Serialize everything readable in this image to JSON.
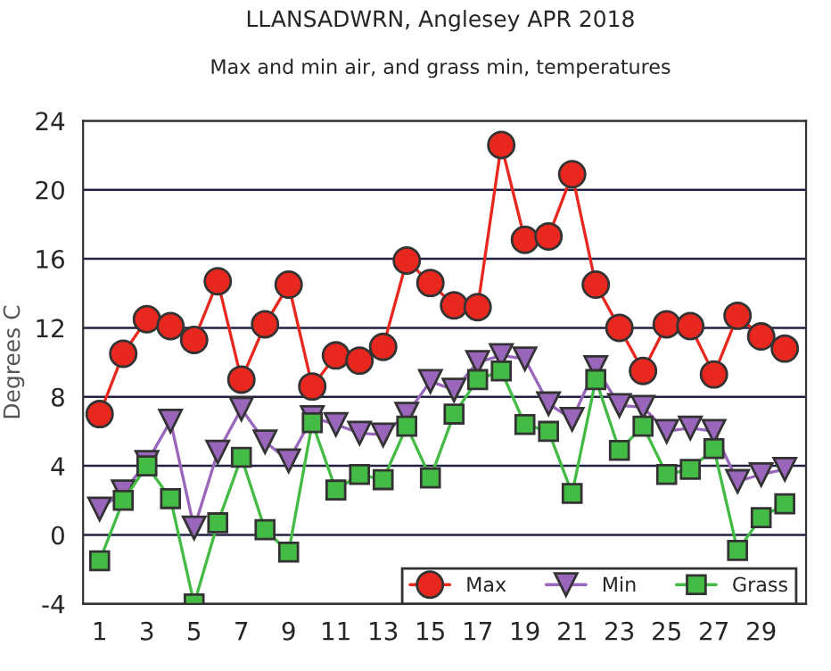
{
  "chart_data": {
    "type": "line",
    "title": "LLANSADWRN, Anglesey APR 2018",
    "subtitle": "Max and min air, and grass min, temperatures",
    "ylabel": "Degrees C",
    "x": [
      1,
      2,
      3,
      4,
      5,
      6,
      7,
      8,
      9,
      10,
      11,
      12,
      13,
      14,
      15,
      16,
      17,
      18,
      19,
      20,
      21,
      22,
      23,
      24,
      25,
      26,
      27,
      28,
      29,
      30
    ],
    "series": [
      {
        "name": "Max",
        "color": "#e8281e",
        "marker": "circle",
        "values": [
          7.0,
          10.5,
          12.5,
          12.1,
          11.3,
          14.7,
          9.0,
          12.2,
          14.5,
          8.6,
          10.4,
          10.1,
          10.9,
          15.9,
          14.6,
          13.3,
          13.2,
          22.6,
          17.1,
          17.3,
          20.9,
          14.5,
          12.0,
          9.5,
          12.2,
          12.1,
          9.3,
          12.7,
          11.5,
          10.8
        ]
      },
      {
        "name": "Min",
        "color": "#9966bb",
        "marker": "triangle",
        "values": [
          1.5,
          2.5,
          4.2,
          6.6,
          0.4,
          4.8,
          7.3,
          5.4,
          4.3,
          6.8,
          6.4,
          5.9,
          5.8,
          7.0,
          8.9,
          8.4,
          10.0,
          10.4,
          10.2,
          7.6,
          6.7,
          9.7,
          7.5,
          7.4,
          6.0,
          6.2,
          6.0,
          3.1,
          3.5,
          3.8
        ]
      },
      {
        "name": "Grass",
        "color": "#44bb44",
        "marker": "square",
        "values": [
          -1.5,
          2.0,
          4.0,
          2.1,
          -4.0,
          0.7,
          4.5,
          0.3,
          -1.0,
          6.5,
          2.6,
          3.5,
          3.2,
          6.3,
          3.3,
          7.0,
          9.0,
          9.5,
          6.4,
          6.0,
          2.4,
          9.0,
          4.9,
          6.3,
          3.5,
          3.8,
          5.0,
          -0.9,
          1.0,
          1.8
        ]
      }
    ],
    "xlim": [
      0.3,
      30.9
    ],
    "xticks": [
      1,
      3,
      5,
      7,
      9,
      11,
      13,
      15,
      17,
      19,
      21,
      23,
      25,
      27,
      29
    ],
    "ylim": [
      -4,
      24
    ],
    "yticks": [
      -4,
      0,
      4,
      8,
      12,
      16,
      20,
      24
    ],
    "grid": "y",
    "legend": "bottom right"
  }
}
